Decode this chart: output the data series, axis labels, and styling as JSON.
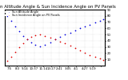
{
  "title": "Sun Altitude Angle & Sun Incidence Angle on PV Panels",
  "blue_label": "Sun Altitude Angle",
  "red_label": "Sun Incidence Angle on PV Panels",
  "background_color": "#ffffff",
  "grid_color": "#aaaaaa",
  "blue_color": "#0000dd",
  "red_color": "#dd0000",
  "xlim": [
    0,
    1
  ],
  "ylim": [
    0,
    90
  ],
  "yticks": [
    10,
    20,
    30,
    40,
    50,
    60,
    70,
    80,
    90
  ],
  "ytick_labels": [
    "10",
    "20",
    "30",
    "40",
    "50",
    "60",
    "70",
    "80",
    "90"
  ],
  "blue_x": [
    0.02,
    0.06,
    0.1,
    0.14,
    0.18,
    0.22,
    0.26,
    0.3,
    0.35,
    0.4,
    0.45,
    0.5,
    0.55,
    0.6,
    0.65,
    0.7,
    0.75,
    0.8,
    0.85,
    0.9,
    0.95,
    0.98
  ],
  "blue_y": [
    80,
    72,
    63,
    55,
    48,
    42,
    37,
    33,
    31,
    33,
    37,
    42,
    46,
    50,
    53,
    57,
    60,
    63,
    66,
    69,
    72,
    74
  ],
  "red_x": [
    0.02,
    0.06,
    0.1,
    0.14,
    0.18,
    0.22,
    0.26,
    0.3,
    0.35,
    0.4,
    0.45,
    0.5,
    0.55,
    0.6,
    0.65,
    0.7,
    0.75,
    0.8,
    0.85,
    0.9,
    0.95,
    0.98
  ],
  "red_y": [
    8,
    14,
    22,
    30,
    36,
    42,
    46,
    49,
    50,
    48,
    45,
    42,
    38,
    36,
    32,
    28,
    24,
    20,
    17,
    14,
    11,
    9
  ],
  "xtick_positions": [
    0.04,
    0.12,
    0.2,
    0.29,
    0.38,
    0.46,
    0.54,
    0.63,
    0.71,
    0.8,
    0.88,
    0.96
  ],
  "xtick_labels": [
    "7:5",
    "8:3",
    "9:14",
    "10:37",
    "11:14",
    "13:27",
    "2:41",
    "3:05",
    "4:1",
    "4:27",
    "5:19",
    ""
  ],
  "title_fontsize": 4.0,
  "tick_fontsize": 2.8,
  "legend_fontsize": 2.5,
  "marker_size": 1.5
}
